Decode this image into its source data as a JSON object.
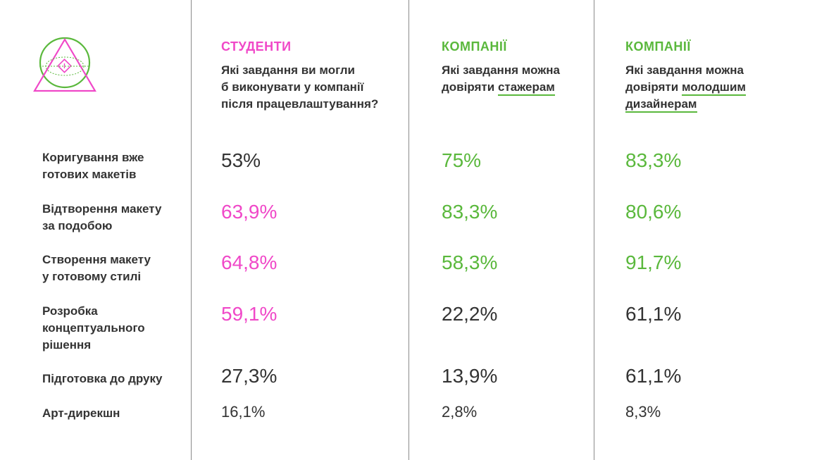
{
  "colors": {
    "pink": "#f048c8",
    "green": "#5ab83c",
    "dark": "#333333"
  },
  "logo": {
    "icon": "triangle-circle-eye-logo"
  },
  "columns": [
    {
      "title": "СТУДЕНТИ",
      "q1": "Які завдання ви могли",
      "q2": "б виконувати у компанії",
      "q3": "після працевлаштування?"
    },
    {
      "title": "КОМПАНІЇ",
      "q1": "Які завдання можна",
      "q2a": "довіряти ",
      "q2b": "стажерам"
    },
    {
      "title": "КОМПАНІЇ",
      "q1": "Які завдання можна",
      "q2a": "довіряти ",
      "q2b": "молодшим",
      "q3": "дизайнерам"
    }
  ],
  "rows": [
    {
      "label1": "Коригування вже",
      "label2": "готових макетів",
      "students": "53%",
      "interns": "75%",
      "juniors": "83,3%"
    },
    {
      "label1": "Відтворення макету",
      "label2": "за подобою",
      "students": "63,9%",
      "interns": "83,3%",
      "juniors": "80,6%"
    },
    {
      "label1": "Створення макету",
      "label2": "у готовому стилі",
      "students": "64,8%",
      "interns": "58,3%",
      "juniors": "91,7%"
    },
    {
      "label1": "Розробка",
      "label2": "концептуального",
      "label3": "рішення",
      "students": "59,1%",
      "interns": "22,2%",
      "juniors": "61,1%"
    },
    {
      "label1": "Підготовка до друку",
      "students": "27,3%",
      "interns": "13,9%",
      "juniors": "61,1%"
    },
    {
      "label1": "Арт-дирекшн",
      "students": "16,1%",
      "interns": "2,8%",
      "juniors": "8,3%"
    }
  ]
}
